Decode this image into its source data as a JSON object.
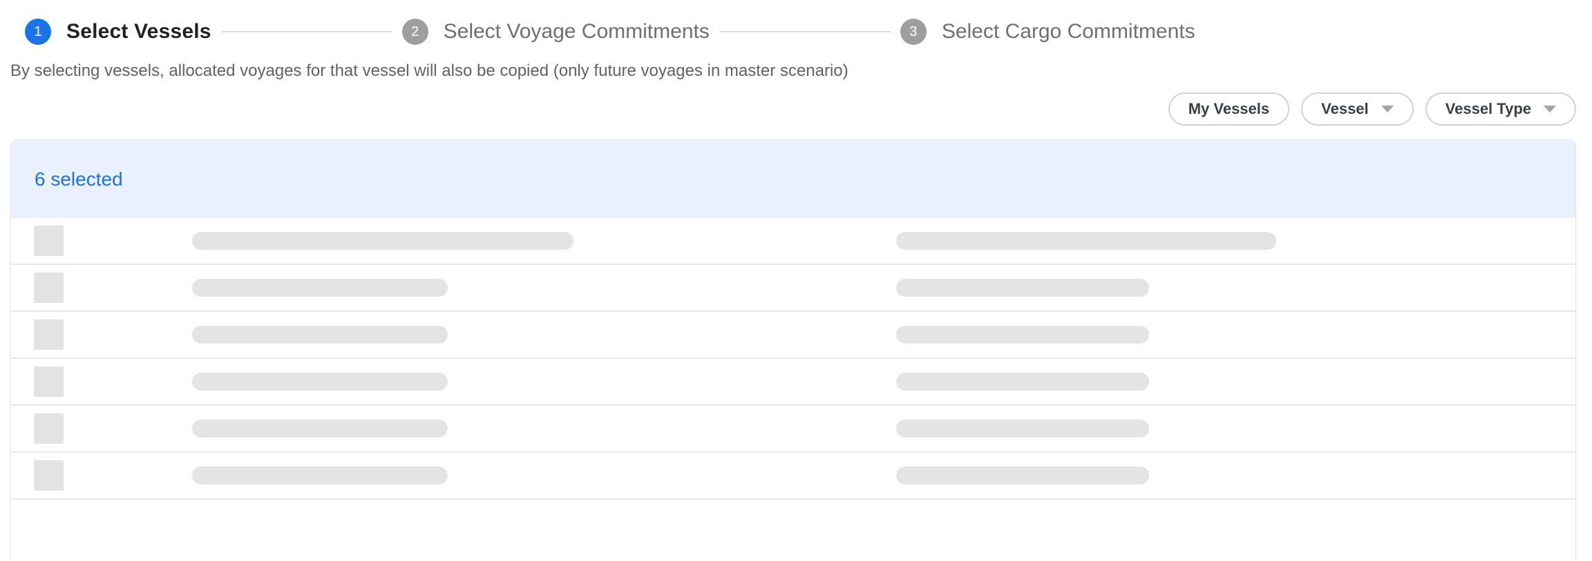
{
  "stepper": {
    "steps": [
      {
        "number": "1",
        "label": "Select Vessels",
        "state": "active"
      },
      {
        "number": "2",
        "label": "Select Voyage Commitments",
        "state": "inactive"
      },
      {
        "number": "3",
        "label": "Select Cargo Commitments",
        "state": "inactive"
      }
    ]
  },
  "subtitle": "By selecting vessels, allocated voyages for that vessel will also be copied (only future voyages in master scenario)",
  "filters": {
    "chips": [
      {
        "label": "My Vessels",
        "has_dropdown": false
      },
      {
        "label": "Vessel",
        "has_dropdown": true
      },
      {
        "label": "Vessel Type",
        "has_dropdown": true
      }
    ]
  },
  "table": {
    "selection_banner": "6 selected",
    "selected_count": 6,
    "skeleton_rows": [
      {
        "name_bar_width": 552,
        "type_bar_width": 550
      },
      {
        "name_bar_width": 370,
        "type_bar_width": 366
      },
      {
        "name_bar_width": 370,
        "type_bar_width": 366
      },
      {
        "name_bar_width": 370,
        "type_bar_width": 366
      },
      {
        "name_bar_width": 370,
        "type_bar_width": 366
      },
      {
        "name_bar_width": 370,
        "type_bar_width": 366
      }
    ]
  },
  "colors": {
    "accent_blue": "#1a73e8",
    "banner_background": "#eaf0fc",
    "inactive_step_gray": "#9e9e9e",
    "skeleton_gray": "#e4e4e4",
    "chip_border_gray": "#d3d3d3"
  }
}
